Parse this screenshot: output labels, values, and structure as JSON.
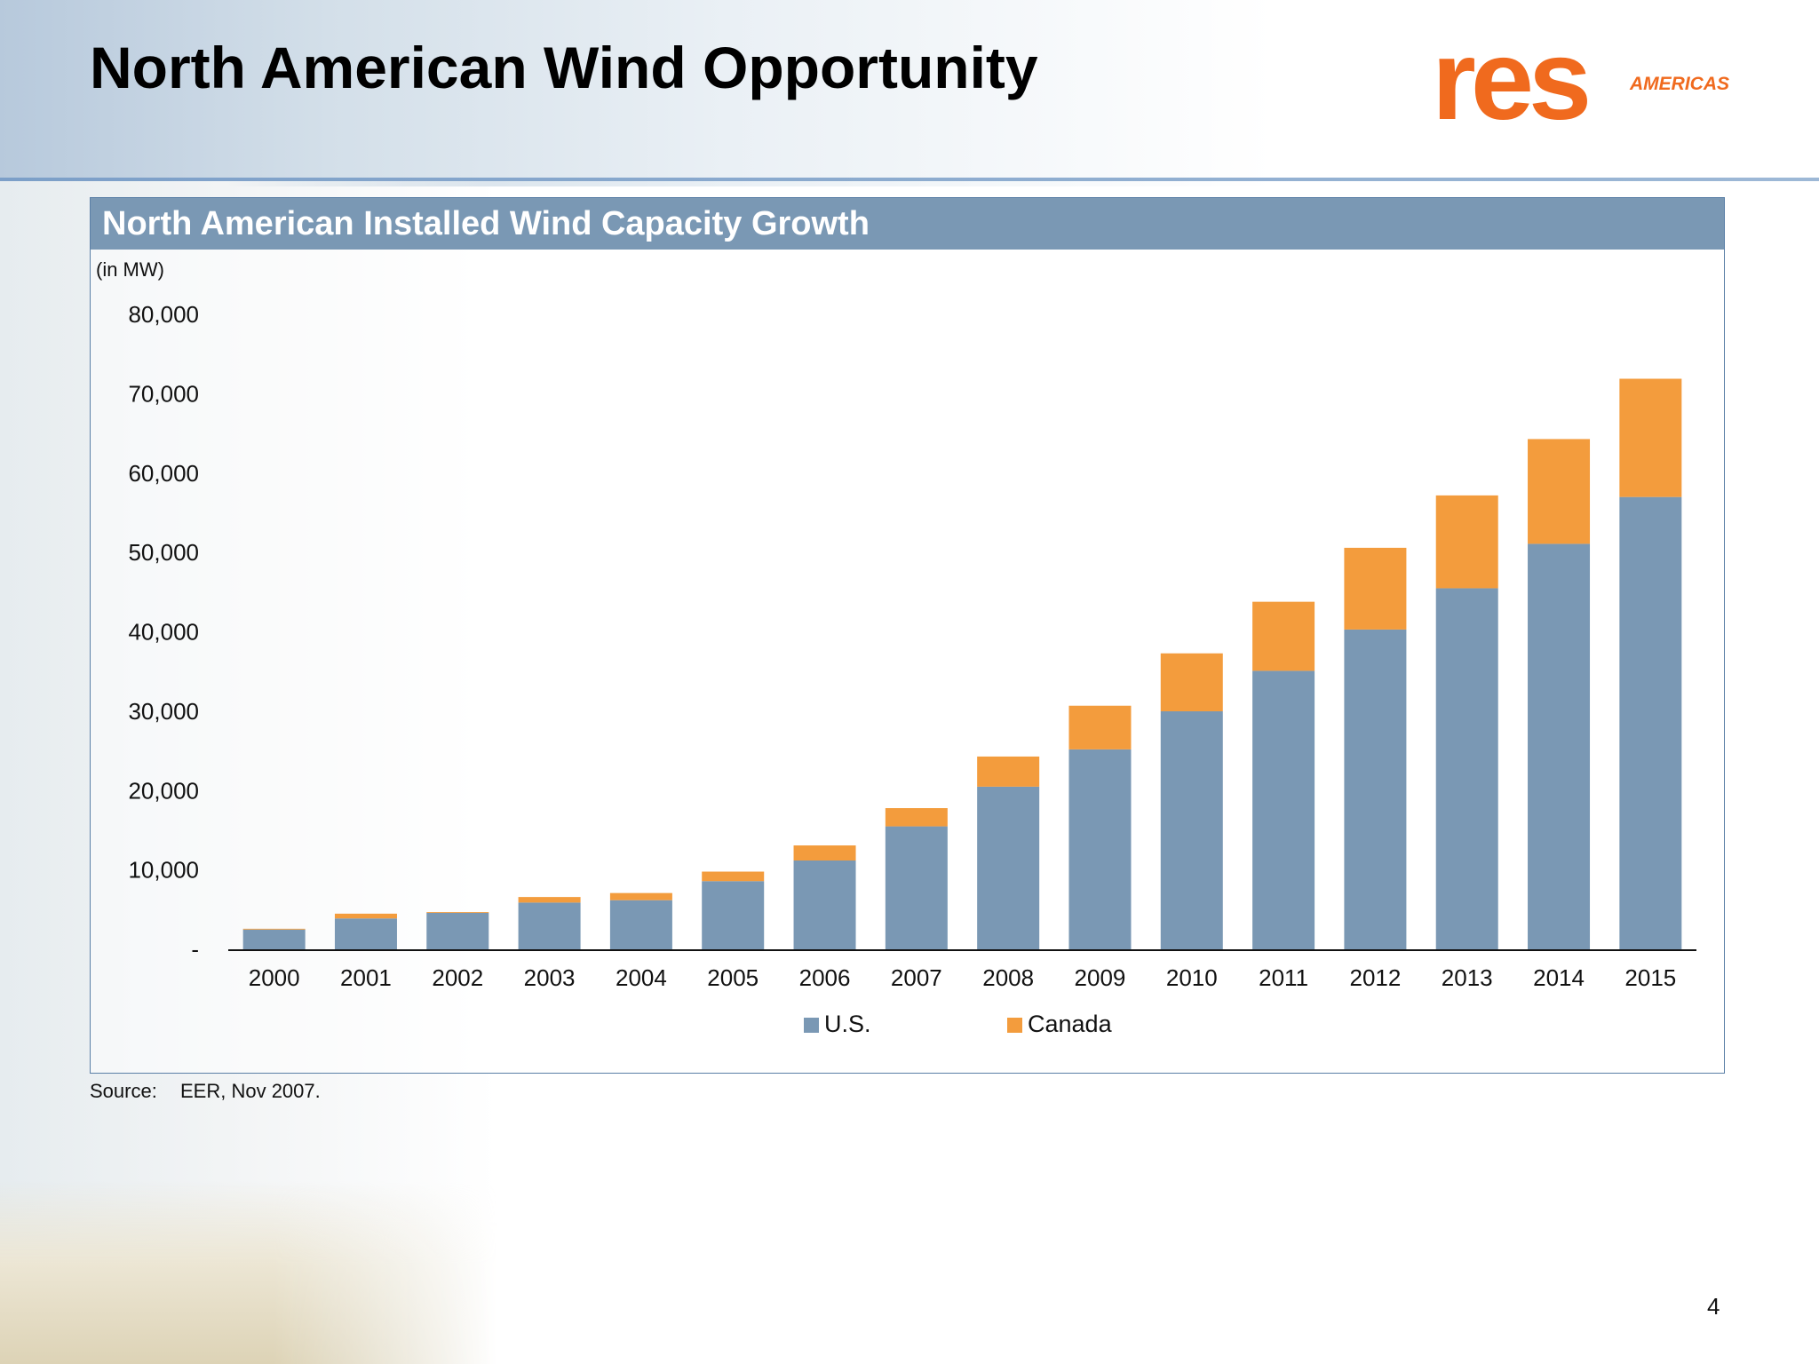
{
  "slide": {
    "title": "North American Wind Opportunity",
    "logo_text": "res",
    "logo_subtext": "AMERICAS",
    "source_label": "Source:",
    "source_text": "EER, Nov 2007.",
    "page_number": "4"
  },
  "colors": {
    "us": "#7a98b4",
    "canada": "#f39c3d",
    "header_bg": "#7a98b4",
    "logo_orange": "#f06a1e"
  },
  "chart_data": {
    "type": "bar",
    "stacked": true,
    "title": "North American Installed Wind Capacity Growth",
    "unit_label": "(in MW)",
    "xlabel": "",
    "ylabel": "",
    "ylim": [
      0,
      80000
    ],
    "yticks": [
      0,
      10000,
      20000,
      30000,
      40000,
      50000,
      60000,
      70000,
      80000
    ],
    "ytick_labels": [
      "-",
      "10,000",
      "20,000",
      "30,000",
      "40,000",
      "50,000",
      "60,000",
      "70,000",
      "80,000"
    ],
    "grid": false,
    "legend_position": "bottom",
    "categories": [
      "2000",
      "2001",
      "2002",
      "2003",
      "2004",
      "2005",
      "2006",
      "2007",
      "2008",
      "2009",
      "2010",
      "2011",
      "2012",
      "2013",
      "2014",
      "2015"
    ],
    "series": [
      {
        "name": "U.S.",
        "values": [
          2600,
          4000,
          4700,
          6000,
          6300,
          8700,
          11300,
          15600,
          20600,
          25300,
          30100,
          35200,
          40400,
          45600,
          51200,
          57100
        ]
      },
      {
        "name": "Canada",
        "values": [
          100,
          600,
          100,
          700,
          900,
          1200,
          1900,
          2300,
          3800,
          5500,
          7300,
          8700,
          10300,
          11700,
          13200,
          14900
        ]
      }
    ]
  }
}
